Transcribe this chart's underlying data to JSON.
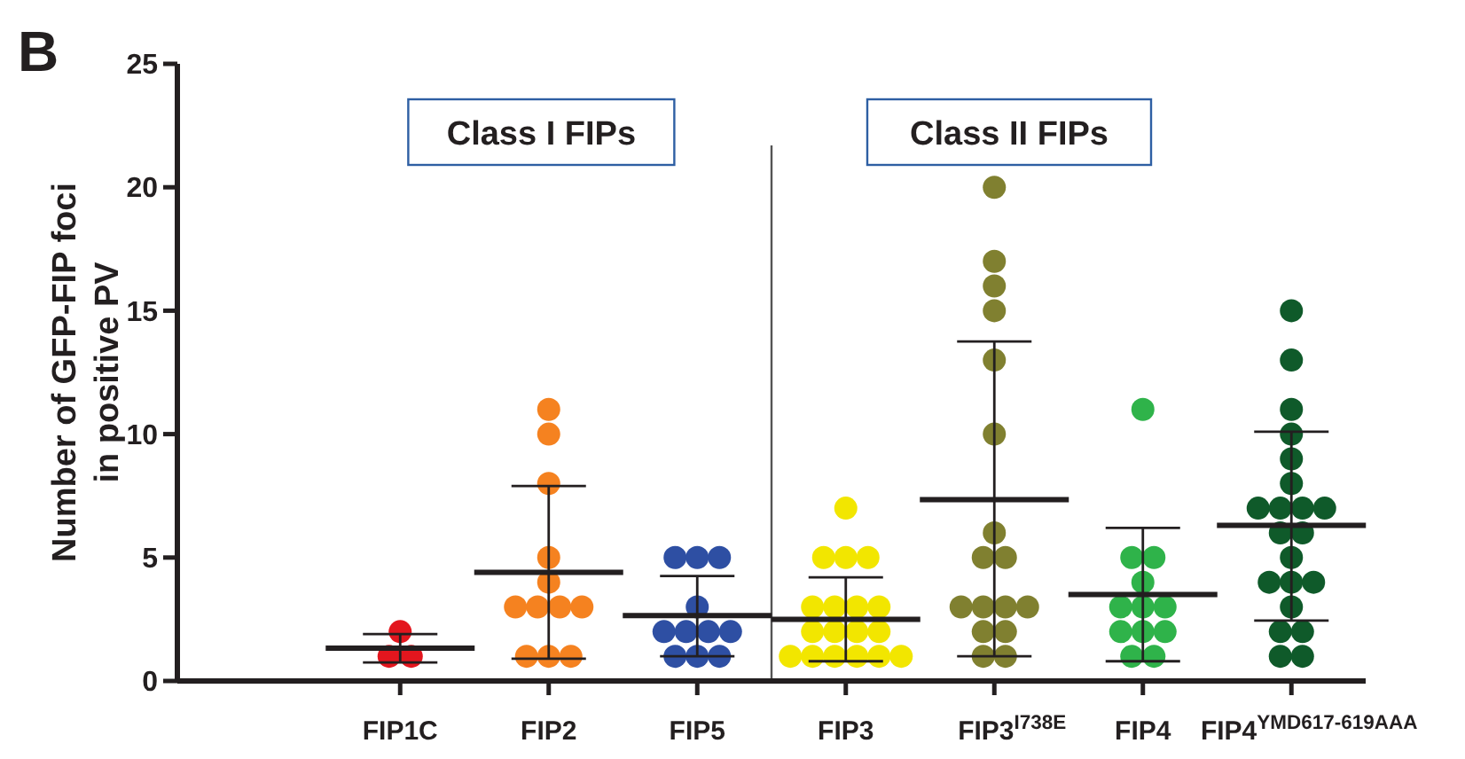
{
  "chart_data": {
    "type": "scatter",
    "ylabel": "Number of GFP-FIP foci\nin positive PV",
    "annotations": [
      "B",
      "Class I FIPs",
      "Class II FIPs"
    ],
    "categories": [
      "FIP1C",
      "FIP2",
      "FIP5",
      "FIP3",
      "FIP3$^{I738E}$",
      "FIP4",
      "FIP4$^{YMD617-619AAA}$"
    ],
    "ylim": [
      0,
      25
    ],
    "yticks": [
      0,
      5,
      10,
      15,
      20,
      25
    ],
    "grid": false,
    "marker": "circle",
    "series": [
      {
        "color": "#e3161e",
        "x": [
          "FIP1C",
          "FIP1C",
          "FIP1C"
        ],
        "values": [
          2,
          1,
          1
        ]
      },
      {
        "color": "#f58220",
        "x": [
          "FIP2",
          "FIP2",
          "FIP2",
          "FIP2",
          "FIP2",
          "FIP2",
          "FIP2",
          "FIP2",
          "FIP2",
          "FIP2",
          "FIP2",
          "FIP2"
        ],
        "values": [
          11,
          10,
          8,
          5,
          4,
          3,
          3,
          3,
          3,
          1,
          1,
          1
        ]
      },
      {
        "color": "#2e4fa3",
        "x": [
          "FIP5",
          "FIP5",
          "FIP5",
          "FIP5",
          "FIP5",
          "FIP5",
          "FIP5",
          "FIP5",
          "FIP5",
          "FIP5",
          "FIP5"
        ],
        "values": [
          5,
          5,
          5,
          3,
          2,
          2,
          2,
          2,
          1,
          1,
          1
        ]
      },
      {
        "color": "#f2e600",
        "x": [
          "FIP3",
          "FIP3",
          "FIP3",
          "FIP3",
          "FIP3",
          "FIP3",
          "FIP3",
          "FIP3",
          "FIP3",
          "FIP3",
          "FIP3",
          "FIP3",
          "FIP3",
          "FIP3",
          "FIP3",
          "FIP3",
          "FIP3",
          "FIP3"
        ],
        "values": [
          7,
          5,
          5,
          5,
          3,
          3,
          3,
          3,
          2,
          2,
          2,
          2,
          1,
          1,
          1,
          1,
          1,
          1
        ]
      },
      {
        "color": "#808030",
        "x": [
          "FIP3$^{I738E}$",
          "FIP3$^{I738E}$",
          "FIP3$^{I738E}$",
          "FIP3$^{I738E}$",
          "FIP3$^{I738E}$",
          "FIP3$^{I738E}$",
          "FIP3$^{I738E}$",
          "FIP3$^{I738E}$",
          "FIP3$^{I738E}$",
          "FIP3$^{I738E}$",
          "FIP3$^{I738E}$",
          "FIP3$^{I738E}$",
          "FIP3$^{I738E}$",
          "FIP3$^{I738E}$",
          "FIP3$^{I738E}$",
          "FIP3$^{I738E}$",
          "FIP3$^{I738E}$"
        ],
        "values": [
          20,
          17,
          16,
          15,
          13,
          10,
          6,
          5,
          5,
          3,
          3,
          3,
          3,
          2,
          2,
          1,
          1
        ]
      },
      {
        "color": "#2fb34a",
        "x": [
          "FIP4",
          "FIP4",
          "FIP4",
          "FIP4",
          "FIP4",
          "FIP4",
          "FIP4",
          "FIP4",
          "FIP4",
          "FIP4",
          "FIP4",
          "FIP4"
        ],
        "values": [
          11,
          5,
          5,
          4,
          3,
          3,
          3,
          2,
          2,
          2,
          1,
          1
        ]
      },
      {
        "color": "#0f5a2a",
        "x": [
          "FIP4$^{YMD617-619AAA}$",
          "FIP4$^{YMD617-619AAA}$",
          "FIP4$^{YMD617-619AAA}$",
          "FIP4$^{YMD617-619AAA}$",
          "FIP4$^{YMD617-619AAA}$",
          "FIP4$^{YMD617-619AAA}$",
          "FIP4$^{YMD617-619AAA}$",
          "FIP4$^{YMD617-619AAA}$",
          "FIP4$^{YMD617-619AAA}$",
          "FIP4$^{YMD617-619AAA}$",
          "FIP4$^{YMD617-619AAA}$",
          "FIP4$^{YMD617-619AAA}$",
          "FIP4$^{YMD617-619AAA}$",
          "FIP4$^{YMD617-619AAA}$",
          "FIP4$^{YMD617-619AAA}$",
          "FIP4$^{YMD617-619AAA}$",
          "FIP4$^{YMD617-619AAA}$",
          "FIP4$^{YMD617-619AAA}$",
          "FIP4$^{YMD617-619AAA}$",
          "FIP4$^{YMD617-619AAA}$",
          "FIP4$^{YMD617-619AAA}$"
        ],
        "values": [
          15,
          13,
          11,
          10,
          9,
          8,
          7,
          7,
          7,
          7,
          6,
          6,
          5,
          4,
          4,
          4,
          3,
          2,
          2,
          1,
          1
        ]
      },
      {
        "type": "box",
        "color": "#231f20",
        "boxes": [
          {
            "low": 0.75,
            "q1": 1.33,
            "median": 1.33,
            "q3": 1.33,
            "high": 1.9
          },
          {
            "low": 0.9,
            "q1": 4.4,
            "median": 4.4,
            "q3": 4.4,
            "high": 7.9
          },
          {
            "low": 1.0,
            "q1": 2.65,
            "median": 2.65,
            "q3": 2.65,
            "high": 4.25
          },
          {
            "low": 0.8,
            "q1": 2.5,
            "median": 2.5,
            "q3": 2.5,
            "high": 4.2
          },
          {
            "low": 1.0,
            "q1": 7.35,
            "median": 7.35,
            "q3": 7.35,
            "high": 13.75
          },
          {
            "low": 0.8,
            "q1": 3.5,
            "median": 3.5,
            "q3": 3.5,
            "high": 6.2
          },
          {
            "low": 2.45,
            "q1": 6.3,
            "median": 6.3,
            "q3": 6.3,
            "high": 10.1
          }
        ]
      }
    ]
  }
}
